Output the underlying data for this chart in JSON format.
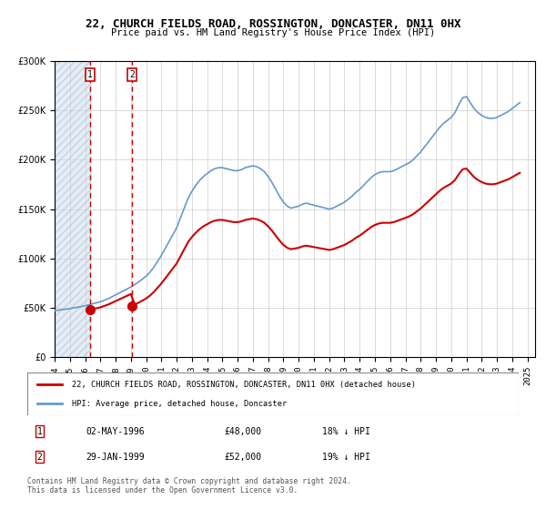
{
  "title": "22, CHURCH FIELDS ROAD, ROSSINGTON, DONCASTER, DN11 0HX",
  "subtitle": "Price paid vs. HM Land Registry's House Price Index (HPI)",
  "xlabel": "",
  "ylabel": "",
  "ylim": [
    0,
    300000
  ],
  "xlim_start": 1994.0,
  "xlim_end": 2025.5,
  "sale_dates": [
    1996.333,
    1999.083
  ],
  "sale_prices": [
    48000,
    52000
  ],
  "sale_labels": [
    "1",
    "2"
  ],
  "sale_info": [
    {
      "num": "1",
      "date": "02-MAY-1996",
      "price": "£48,000",
      "hpi": "18% ↓ HPI"
    },
    {
      "num": "2",
      "date": "29-JAN-1999",
      "price": "£52,000",
      "hpi": "19% ↓ HPI"
    }
  ],
  "legend_property": "22, CHURCH FIELDS ROAD, ROSSINGTON, DONCASTER, DN11 0HX (detached house)",
  "legend_hpi": "HPI: Average price, detached house, Doncaster",
  "copyright": "Contains HM Land Registry data © Crown copyright and database right 2024.\nThis data is licensed under the Open Government Licence v3.0.",
  "property_line_color": "#cc0000",
  "hpi_line_color": "#6699cc",
  "vline_color": "#cc0000",
  "dot_color": "#cc0000",
  "hatch_color": "#ccddee",
  "background_color": "#ffffff",
  "grid_color": "#cccccc",
  "hpi_years": [
    1994.0,
    1994.25,
    1994.5,
    1994.75,
    1995.0,
    1995.25,
    1995.5,
    1995.75,
    1996.0,
    1996.25,
    1996.5,
    1996.75,
    1997.0,
    1997.25,
    1997.5,
    1997.75,
    1998.0,
    1998.25,
    1998.5,
    1998.75,
    1999.0,
    1999.25,
    1999.5,
    1999.75,
    2000.0,
    2000.25,
    2000.5,
    2000.75,
    2001.0,
    2001.25,
    2001.5,
    2001.75,
    2002.0,
    2002.25,
    2002.5,
    2002.75,
    2003.0,
    2003.25,
    2003.5,
    2003.75,
    2004.0,
    2004.25,
    2004.5,
    2004.75,
    2005.0,
    2005.25,
    2005.5,
    2005.75,
    2006.0,
    2006.25,
    2006.5,
    2006.75,
    2007.0,
    2007.25,
    2007.5,
    2007.75,
    2008.0,
    2008.25,
    2008.5,
    2008.75,
    2009.0,
    2009.25,
    2009.5,
    2009.75,
    2010.0,
    2010.25,
    2010.5,
    2010.75,
    2011.0,
    2011.25,
    2011.5,
    2011.75,
    2012.0,
    2012.25,
    2012.5,
    2012.75,
    2013.0,
    2013.25,
    2013.5,
    2013.75,
    2014.0,
    2014.25,
    2014.5,
    2014.75,
    2015.0,
    2015.25,
    2015.5,
    2015.75,
    2016.0,
    2016.25,
    2016.5,
    2016.75,
    2017.0,
    2017.25,
    2017.5,
    2017.75,
    2018.0,
    2018.25,
    2018.5,
    2018.75,
    2019.0,
    2019.25,
    2019.5,
    2019.75,
    2020.0,
    2020.25,
    2020.5,
    2020.75,
    2021.0,
    2021.25,
    2021.5,
    2021.75,
    2022.0,
    2022.25,
    2022.5,
    2022.75,
    2023.0,
    2023.25,
    2023.5,
    2023.75,
    2024.0,
    2024.25,
    2024.5
  ],
  "hpi_values": [
    47000,
    47500,
    48000,
    48500,
    49000,
    49800,
    50500,
    51200,
    52000,
    53000,
    54000,
    55000,
    56000,
    57500,
    59000,
    61000,
    63000,
    65000,
    67000,
    69000,
    71000,
    73500,
    76000,
    79000,
    82000,
    86000,
    91000,
    97000,
    103000,
    110000,
    117000,
    124000,
    131000,
    141000,
    151000,
    161000,
    168000,
    174000,
    179000,
    183000,
    186000,
    189000,
    191000,
    192000,
    192000,
    191000,
    190000,
    189000,
    189000,
    190000,
    192000,
    193000,
    194000,
    193000,
    191000,
    188000,
    183000,
    177000,
    170000,
    163000,
    157000,
    153000,
    151000,
    152000,
    153000,
    155000,
    156000,
    155000,
    154000,
    153000,
    152000,
    151000,
    150000,
    151000,
    153000,
    155000,
    157000,
    160000,
    163000,
    167000,
    170000,
    174000,
    178000,
    182000,
    185000,
    187000,
    188000,
    188000,
    188000,
    189000,
    191000,
    193000,
    195000,
    197000,
    200000,
    204000,
    208000,
    213000,
    218000,
    223000,
    228000,
    233000,
    237000,
    240000,
    243000,
    248000,
    256000,
    263000,
    264000,
    258000,
    252000,
    248000,
    245000,
    243000,
    242000,
    242000,
    243000,
    245000,
    247000,
    249000,
    252000,
    255000,
    258000
  ],
  "yticks": [
    0,
    50000,
    100000,
    150000,
    200000,
    250000,
    300000
  ],
  "xticks": [
    1994,
    1995,
    1996,
    1997,
    1998,
    1999,
    2000,
    2001,
    2002,
    2003,
    2004,
    2005,
    2006,
    2007,
    2008,
    2009,
    2010,
    2011,
    2012,
    2013,
    2014,
    2015,
    2016,
    2017,
    2018,
    2019,
    2020,
    2021,
    2022,
    2023,
    2024,
    2025
  ]
}
